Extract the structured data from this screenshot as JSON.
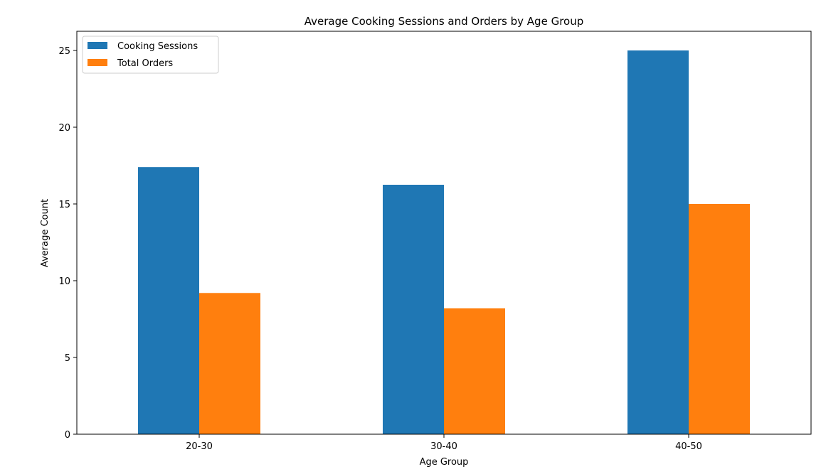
{
  "chart_data": {
    "type": "bar",
    "title": "Average Cooking Sessions and Orders by Age Group",
    "xlabel": "Age Group",
    "ylabel": "Average Count",
    "categories": [
      "20-30",
      "30-40",
      "40-50"
    ],
    "series": [
      {
        "name": "Cooking Sessions",
        "color": "#1f77b4",
        "values": [
          17.4,
          16.25,
          25.0
        ]
      },
      {
        "name": "Total Orders",
        "color": "#ff7f0e",
        "values": [
          9.2,
          8.2,
          15.0
        ]
      }
    ],
    "ylim": [
      0,
      26.25
    ],
    "yticks": [
      0,
      5,
      10,
      15,
      20,
      25
    ],
    "grid": false,
    "legend_position": "top-left"
  }
}
